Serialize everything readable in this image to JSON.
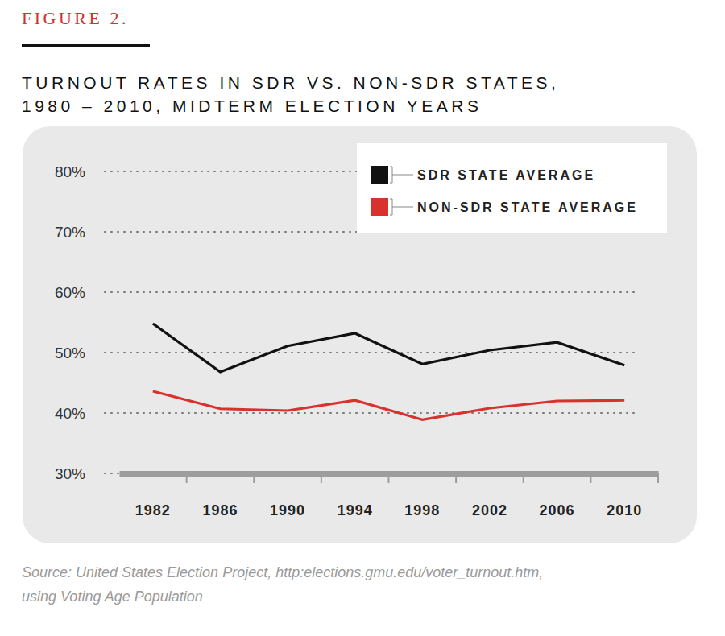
{
  "chart_data": {
    "type": "line",
    "figure_label": "FIGURE 2.",
    "title": [
      "TURNOUT RATES IN SDR VS. NON-SDR STATES,",
      "1980 – 2010, MIDTERM ELECTION YEARS"
    ],
    "source": [
      "Source: United States Election Project, http:elections.gmu.edu/voter_turnout.htm,",
      "using Voting Age Population"
    ],
    "categories": [
      "1982",
      "1986",
      "1990",
      "1994",
      "1998",
      "2002",
      "2006",
      "2010"
    ],
    "series": [
      {
        "name": "SDR STATE AVERAGE",
        "color": "#111111",
        "values": [
          54.8,
          46.8,
          51.1,
          53.2,
          48.1,
          50.4,
          51.7,
          47.9
        ]
      },
      {
        "name": "NON-SDR STATE AVERAGE",
        "color": "#d8322e",
        "values": [
          43.6,
          40.7,
          40.4,
          42.1,
          38.9,
          40.8,
          42.0,
          42.1
        ]
      }
    ],
    "ylim": [
      30,
      80
    ],
    "yticks": [
      {
        "value": 30,
        "label": "30%"
      },
      {
        "value": 40,
        "label": "40%"
      },
      {
        "value": 50,
        "label": "50%"
      },
      {
        "value": 60,
        "label": "60%"
      },
      {
        "value": 70,
        "label": "70%"
      },
      {
        "value": 80,
        "label": "80%"
      }
    ],
    "grid": true,
    "legend": "top-right"
  }
}
